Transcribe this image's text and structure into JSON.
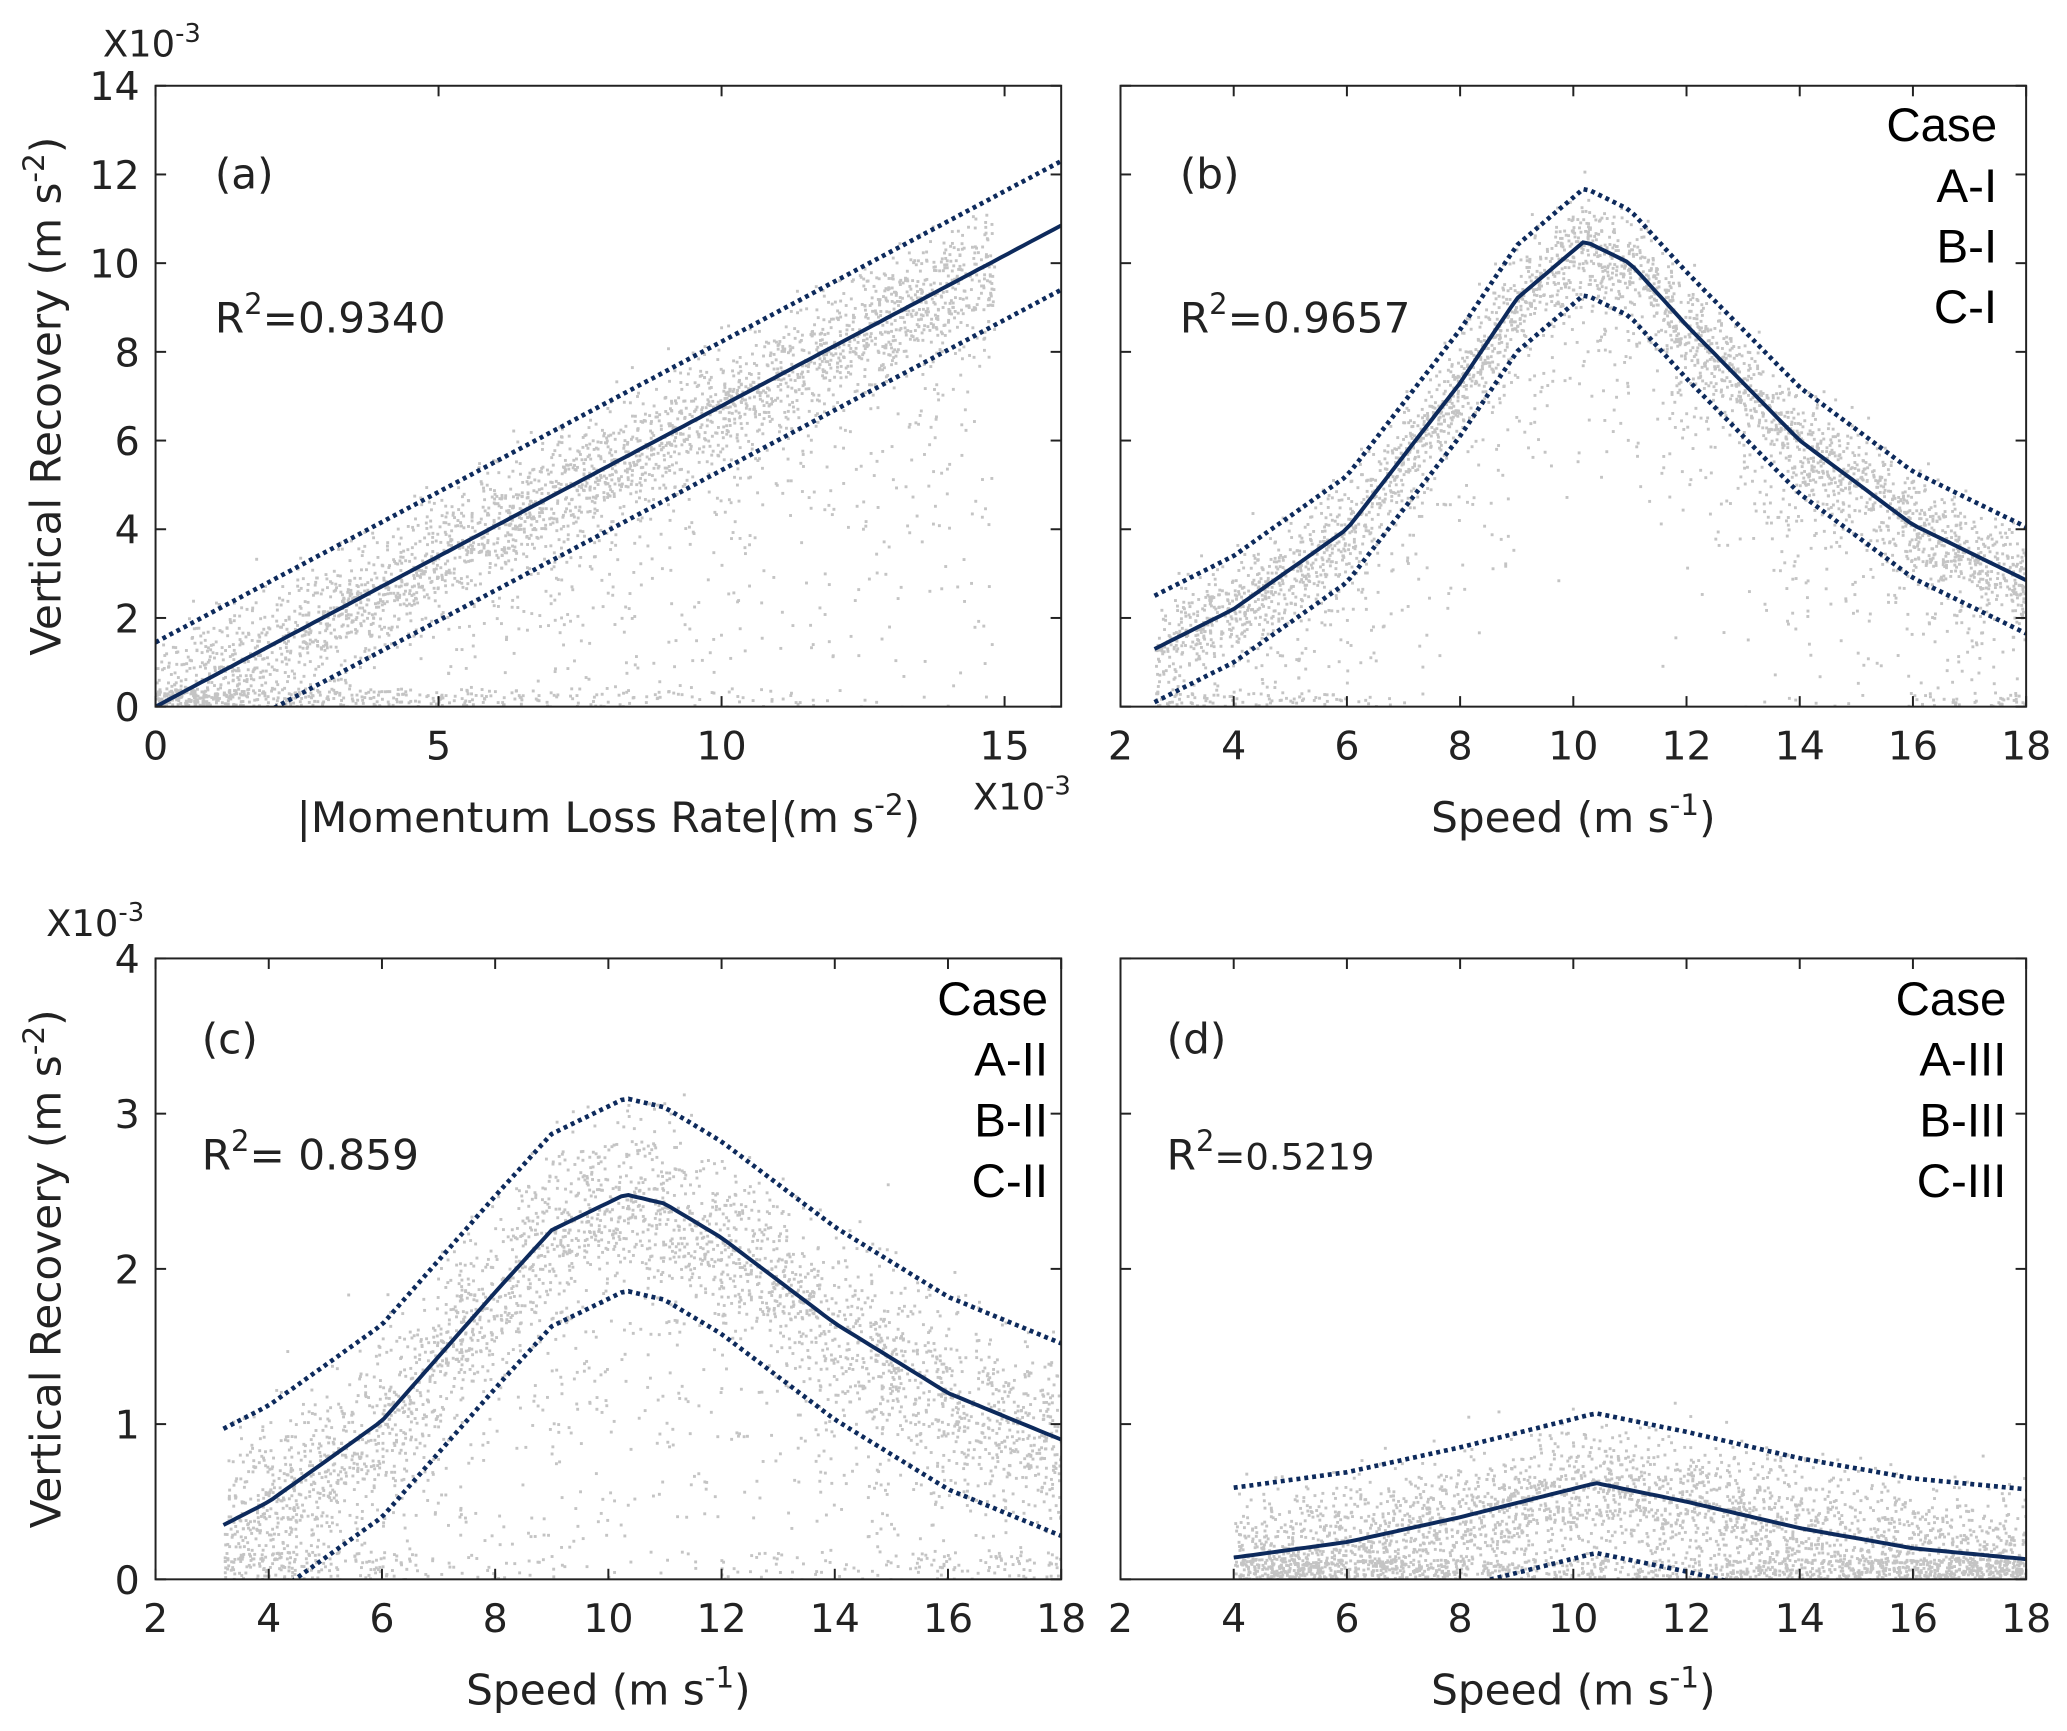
{
  "colors": {
    "scatter": "#c4c4c4",
    "fit": "#0d2a5c",
    "axis": "#222222"
  },
  "chart_data": [
    {
      "id": "a",
      "type": "scatter",
      "panel_label": "(a)",
      "r2_label": "R",
      "r2_sup": "2",
      "r2_value": "=0.9340",
      "xlim": [
        0,
        16
      ],
      "ylim": [
        0,
        14
      ],
      "xticks": [
        0,
        5,
        10,
        15
      ],
      "yticks": [
        0,
        2,
        4,
        6,
        8,
        10,
        12,
        14
      ],
      "x_ticklabels": true,
      "y_ticklabels": true,
      "xlabel": {
        "main": "|Momentum Loss Rate|(m s",
        "sup": "-2",
        "tail": ")"
      },
      "ylabel": {
        "main": "Vertical Recovery (m s",
        "sup": "-2",
        "tail": ")"
      },
      "x_multiplier": {
        "main": "X10",
        "sup": "-3"
      },
      "y_multiplier": {
        "main": "X10",
        "sup": "-3"
      },
      "fit": {
        "x": [
          0,
          16
        ],
        "y": [
          0,
          10.85
        ]
      },
      "band_offset": 1.45,
      "legend": []
    },
    {
      "id": "b",
      "type": "scatter",
      "panel_label": "(b)",
      "r2_label": "R",
      "r2_sup": "2",
      "r2_value": "=0.9657",
      "xlim": [
        2,
        18
      ],
      "ylim": [
        0,
        14
      ],
      "xticks": [
        2,
        4,
        6,
        8,
        10,
        12,
        14,
        16,
        18
      ],
      "yticks": [
        0,
        2,
        4,
        6,
        8,
        10,
        12,
        14
      ],
      "x_ticklabels": true,
      "y_ticklabels": false,
      "xlabel": {
        "main": "Speed (m s",
        "sup": "-1",
        "tail": ")"
      },
      "fit": {
        "x": [
          2.6,
          4,
          6,
          8,
          9,
          10.2,
          11,
          12,
          14,
          16,
          18
        ],
        "y": [
          1.3,
          2.2,
          4.0,
          7.3,
          9.2,
          10.5,
          10.0,
          8.6,
          6.0,
          4.1,
          2.85
        ]
      },
      "band_offset": 1.2,
      "legend": [
        "Case",
        "A-I",
        "B-I",
        "C-I"
      ]
    },
    {
      "id": "c",
      "type": "scatter",
      "panel_label": "(c)",
      "r2_label": "R",
      "r2_sup": "2",
      "r2_value": "= 0.859",
      "xlim": [
        2,
        18
      ],
      "ylim": [
        0,
        4
      ],
      "xticks": [
        2,
        4,
        6,
        8,
        10,
        12,
        14,
        16,
        18
      ],
      "yticks": [
        0,
        1,
        2,
        3,
        4
      ],
      "x_ticklabels": true,
      "y_ticklabels": true,
      "xlabel": {
        "main": "Speed (m s",
        "sup": "-1",
        "tail": ")"
      },
      "ylabel": {
        "main": "Vertical Recovery (m s",
        "sup": "-2",
        "tail": ")"
      },
      "y_multiplier": {
        "main": "X10",
        "sup": "-3"
      },
      "fit": {
        "x": [
          3.2,
          4,
          6,
          8,
          9,
          10.3,
          11,
          12,
          14,
          16,
          18
        ],
        "y": [
          0.35,
          0.5,
          1.02,
          1.85,
          2.25,
          2.48,
          2.42,
          2.2,
          1.65,
          1.2,
          0.9
        ]
      },
      "band_offset": 0.62,
      "legend": [
        "Case",
        "A-II",
        "B-II",
        "C-II"
      ]
    },
    {
      "id": "d",
      "type": "scatter",
      "panel_label": "(d)",
      "r2_label": "R",
      "r2_sup": "2",
      "r2_value": "=0.5219",
      "xlim": [
        2,
        18
      ],
      "ylim": [
        0,
        4
      ],
      "xticks": [
        2,
        4,
        6,
        8,
        10,
        12,
        14,
        16,
        18
      ],
      "yticks": [
        0,
        1,
        2,
        3,
        4
      ],
      "x_ticklabels": true,
      "y_ticklabels": false,
      "xlabel": {
        "main": "Speed (m s",
        "sup": "-1",
        "tail": ")"
      },
      "fit": {
        "x": [
          4,
          6,
          8,
          10.4,
          12,
          14,
          16,
          18
        ],
        "y": [
          0.14,
          0.24,
          0.4,
          0.62,
          0.5,
          0.33,
          0.2,
          0.13
        ]
      },
      "band_offset": 0.45,
      "legend": [
        "Case",
        "A-III",
        "B-III",
        "C-III"
      ]
    }
  ]
}
